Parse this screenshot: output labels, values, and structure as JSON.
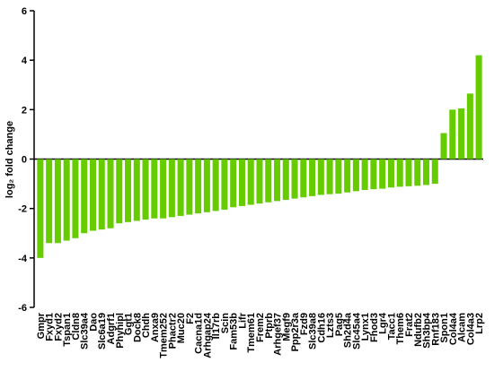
{
  "chart_data": {
    "type": "bar",
    "y_label": "log₂ fold change",
    "categories": [
      "Gmpr",
      "Fxyd1",
      "Fxyd2",
      "Tspan1",
      "Cldn8",
      "Slc39a4",
      "Dao",
      "Slc6a19",
      "Adgrf1",
      "Phyhipl",
      "Ggt1",
      "Dock8",
      "Chdh",
      "Anxa9",
      "Tmem252",
      "Phactr2",
      "Muc20",
      "F2",
      "Cacna1d",
      "Arhgap24",
      "Il17rb",
      "Scin",
      "Fam53b",
      "Lifr",
      "Tmem61",
      "Frem2",
      "Ptprb",
      "Arhgef37",
      "Megf9",
      "Ppp2r3a",
      "Fzd9",
      "Slc39a8",
      "Cdh16",
      "Lzts3",
      "Pag5",
      "Sh2d4a",
      "Slc45a4",
      "Lynx1",
      "Fhod3",
      "Lgr4",
      "Tacc1",
      "Them6",
      "Frat2",
      "Ndufb2",
      "Sh3bp4",
      "Rnf183",
      "Spon1",
      "Col4a4",
      "Alcam",
      "Col4a3",
      "Lrp2"
    ],
    "values": [
      -4.0,
      -3.4,
      -3.4,
      -3.3,
      -3.2,
      -3.0,
      -2.9,
      -2.85,
      -2.8,
      -2.6,
      -2.55,
      -2.5,
      -2.45,
      -2.4,
      -2.4,
      -2.35,
      -2.3,
      -2.25,
      -2.2,
      -2.15,
      -2.1,
      -2.05,
      -1.95,
      -1.9,
      -1.85,
      -1.8,
      -1.75,
      -1.7,
      -1.65,
      -1.6,
      -1.55,
      -1.5,
      -1.45,
      -1.42,
      -1.4,
      -1.35,
      -1.3,
      -1.25,
      -1.22,
      -1.2,
      -1.15,
      -1.12,
      -1.1,
      -1.08,
      -1.05,
      -1.0,
      1.05,
      2.0,
      2.05,
      2.65,
      4.2
    ],
    "color": "#66cc00",
    "ylim": [
      -6,
      6
    ],
    "yticks": [
      -6,
      -4,
      -2,
      0,
      2,
      4,
      6
    ]
  }
}
